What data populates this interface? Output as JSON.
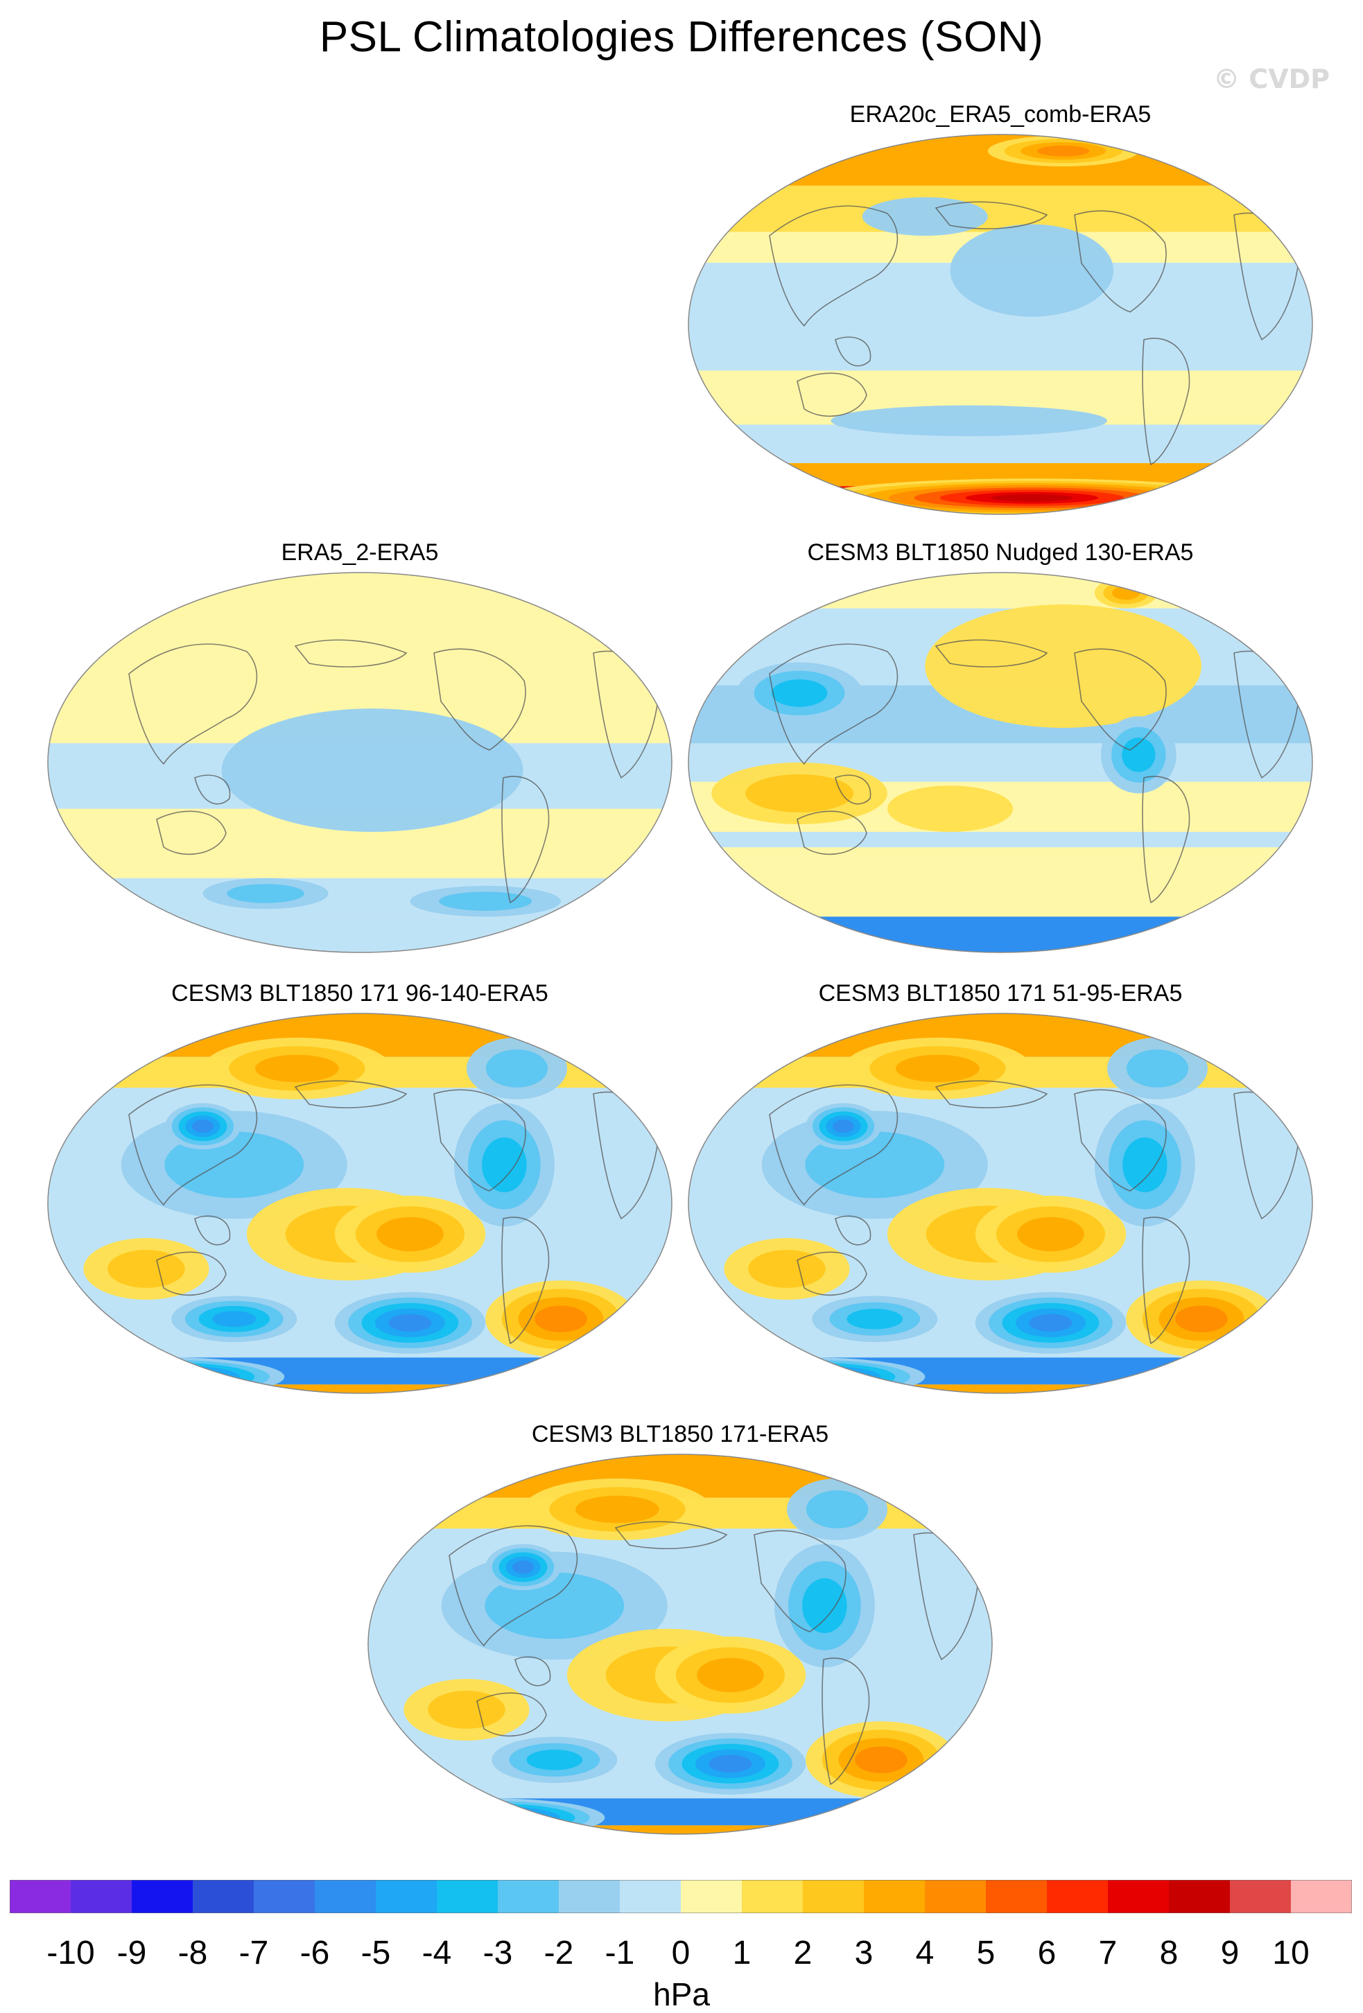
{
  "title": "PSL Climatologies Differences (SON)",
  "watermark": "© CVDP",
  "panels": [
    {
      "id": "p1",
      "label": "ERA20c_ERA5_comb-ERA5"
    },
    {
      "id": "p2",
      "label": "ERA5_2-ERA5"
    },
    {
      "id": "p3",
      "label": "CESM3 BLT1850 Nudged 130-ERA5"
    },
    {
      "id": "p4",
      "label": "CESM3 BLT1850 171 96-140-ERA5"
    },
    {
      "id": "p5",
      "label": "CESM3 BLT1850 171 51-95-ERA5"
    },
    {
      "id": "p6",
      "label": "CESM3 BLT1850 171-ERA5"
    }
  ],
  "colorbar": {
    "unit": "hPa",
    "tick_labels": [
      "-10",
      "-9",
      "-8",
      "-7",
      "-6",
      "-5",
      "-4",
      "-3",
      "-2",
      "-1",
      "0",
      "1",
      "2",
      "3",
      "4",
      "5",
      "6",
      "7",
      "8",
      "9",
      "10"
    ],
    "colors": [
      "#8a2be2",
      "#5b2ee6",
      "#1414f0",
      "#2c4fd8",
      "#3a73e6",
      "#2f8ff0",
      "#1fa6f5",
      "#14c0f0",
      "#5cc6f2",
      "#99d0f0",
      "#bfe3f6",
      "#fff7a8",
      "#ffe04f",
      "#ffc81e",
      "#ffaa00",
      "#ff8c00",
      "#ff5a00",
      "#ff2a00",
      "#e60000",
      "#c80000",
      "#e04848",
      "#ffb4b4"
    ]
  }
}
